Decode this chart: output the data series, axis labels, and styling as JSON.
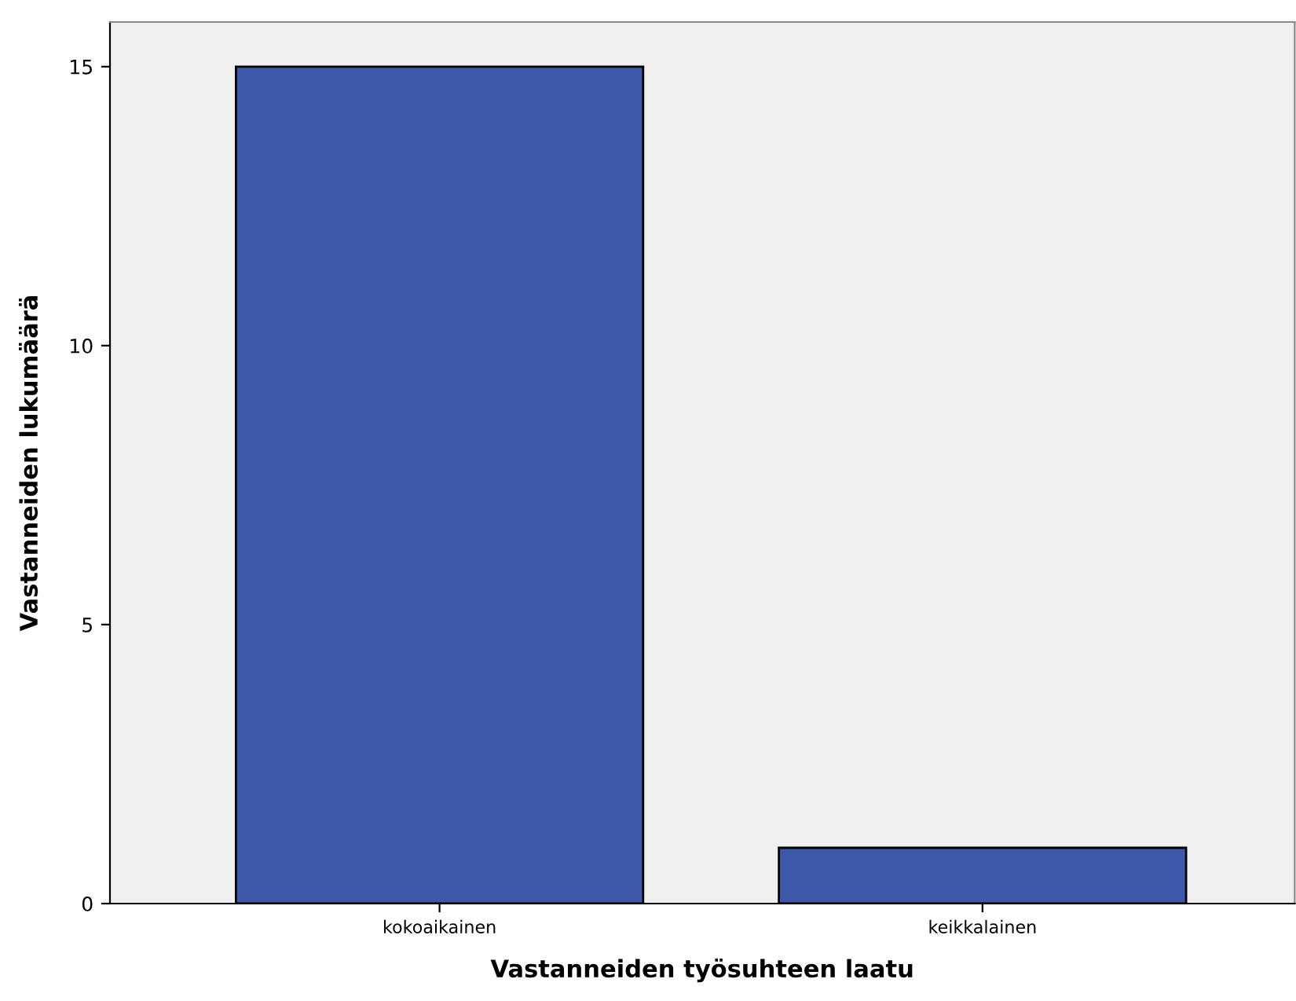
{
  "chart_data": {
    "type": "bar",
    "xlabel": "Vastanneiden työsuhteen laatu",
    "ylabel": "Vastanneiden lukumäärä",
    "categories": [
      "kokoaikainen",
      "keikkalainen"
    ],
    "values": [
      15,
      1
    ],
    "color": "#3d58a8",
    "ylim": [
      0,
      15.8
    ],
    "yticks": [
      0,
      5,
      10,
      15
    ],
    "grid": false
  }
}
